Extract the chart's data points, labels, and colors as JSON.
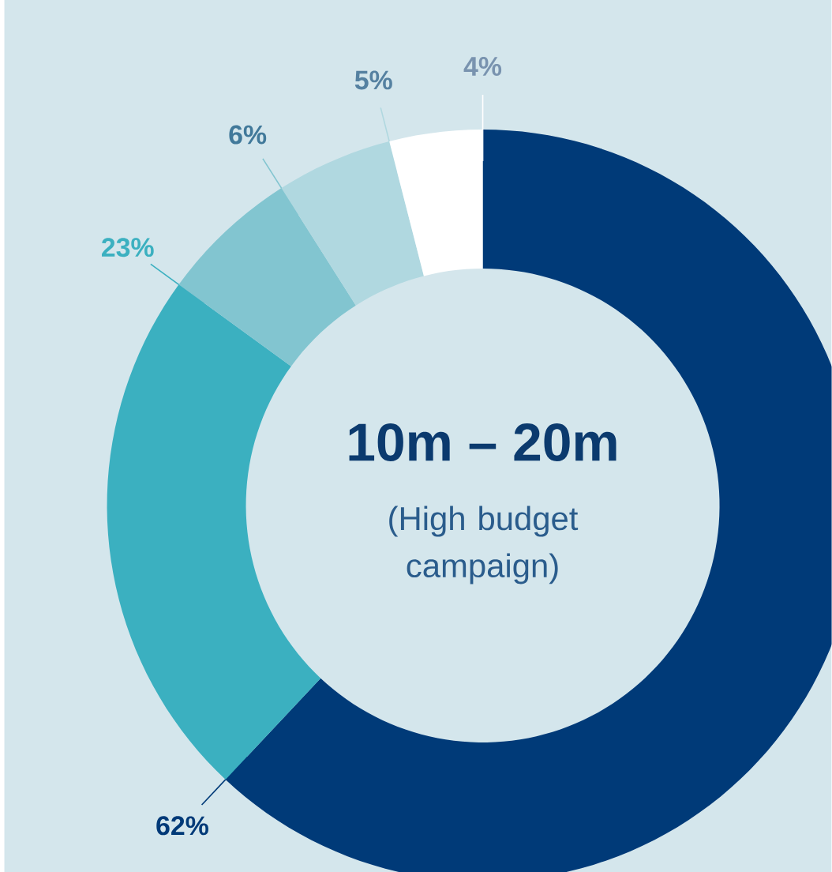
{
  "chart_data": {
    "type": "donut",
    "title": "10m – 20m",
    "subtitle": "(High budget campaign)",
    "categories": [
      null,
      null,
      null,
      null,
      null
    ],
    "values": [
      62,
      23,
      6,
      5,
      4
    ],
    "colors": [
      "#003a78",
      "#3bb0c0",
      "#82c5d0",
      "#b0d8e0",
      "#ffffff"
    ],
    "value_labels": [
      "62%",
      "23%",
      "6%",
      "5%",
      "4%"
    ]
  }
}
